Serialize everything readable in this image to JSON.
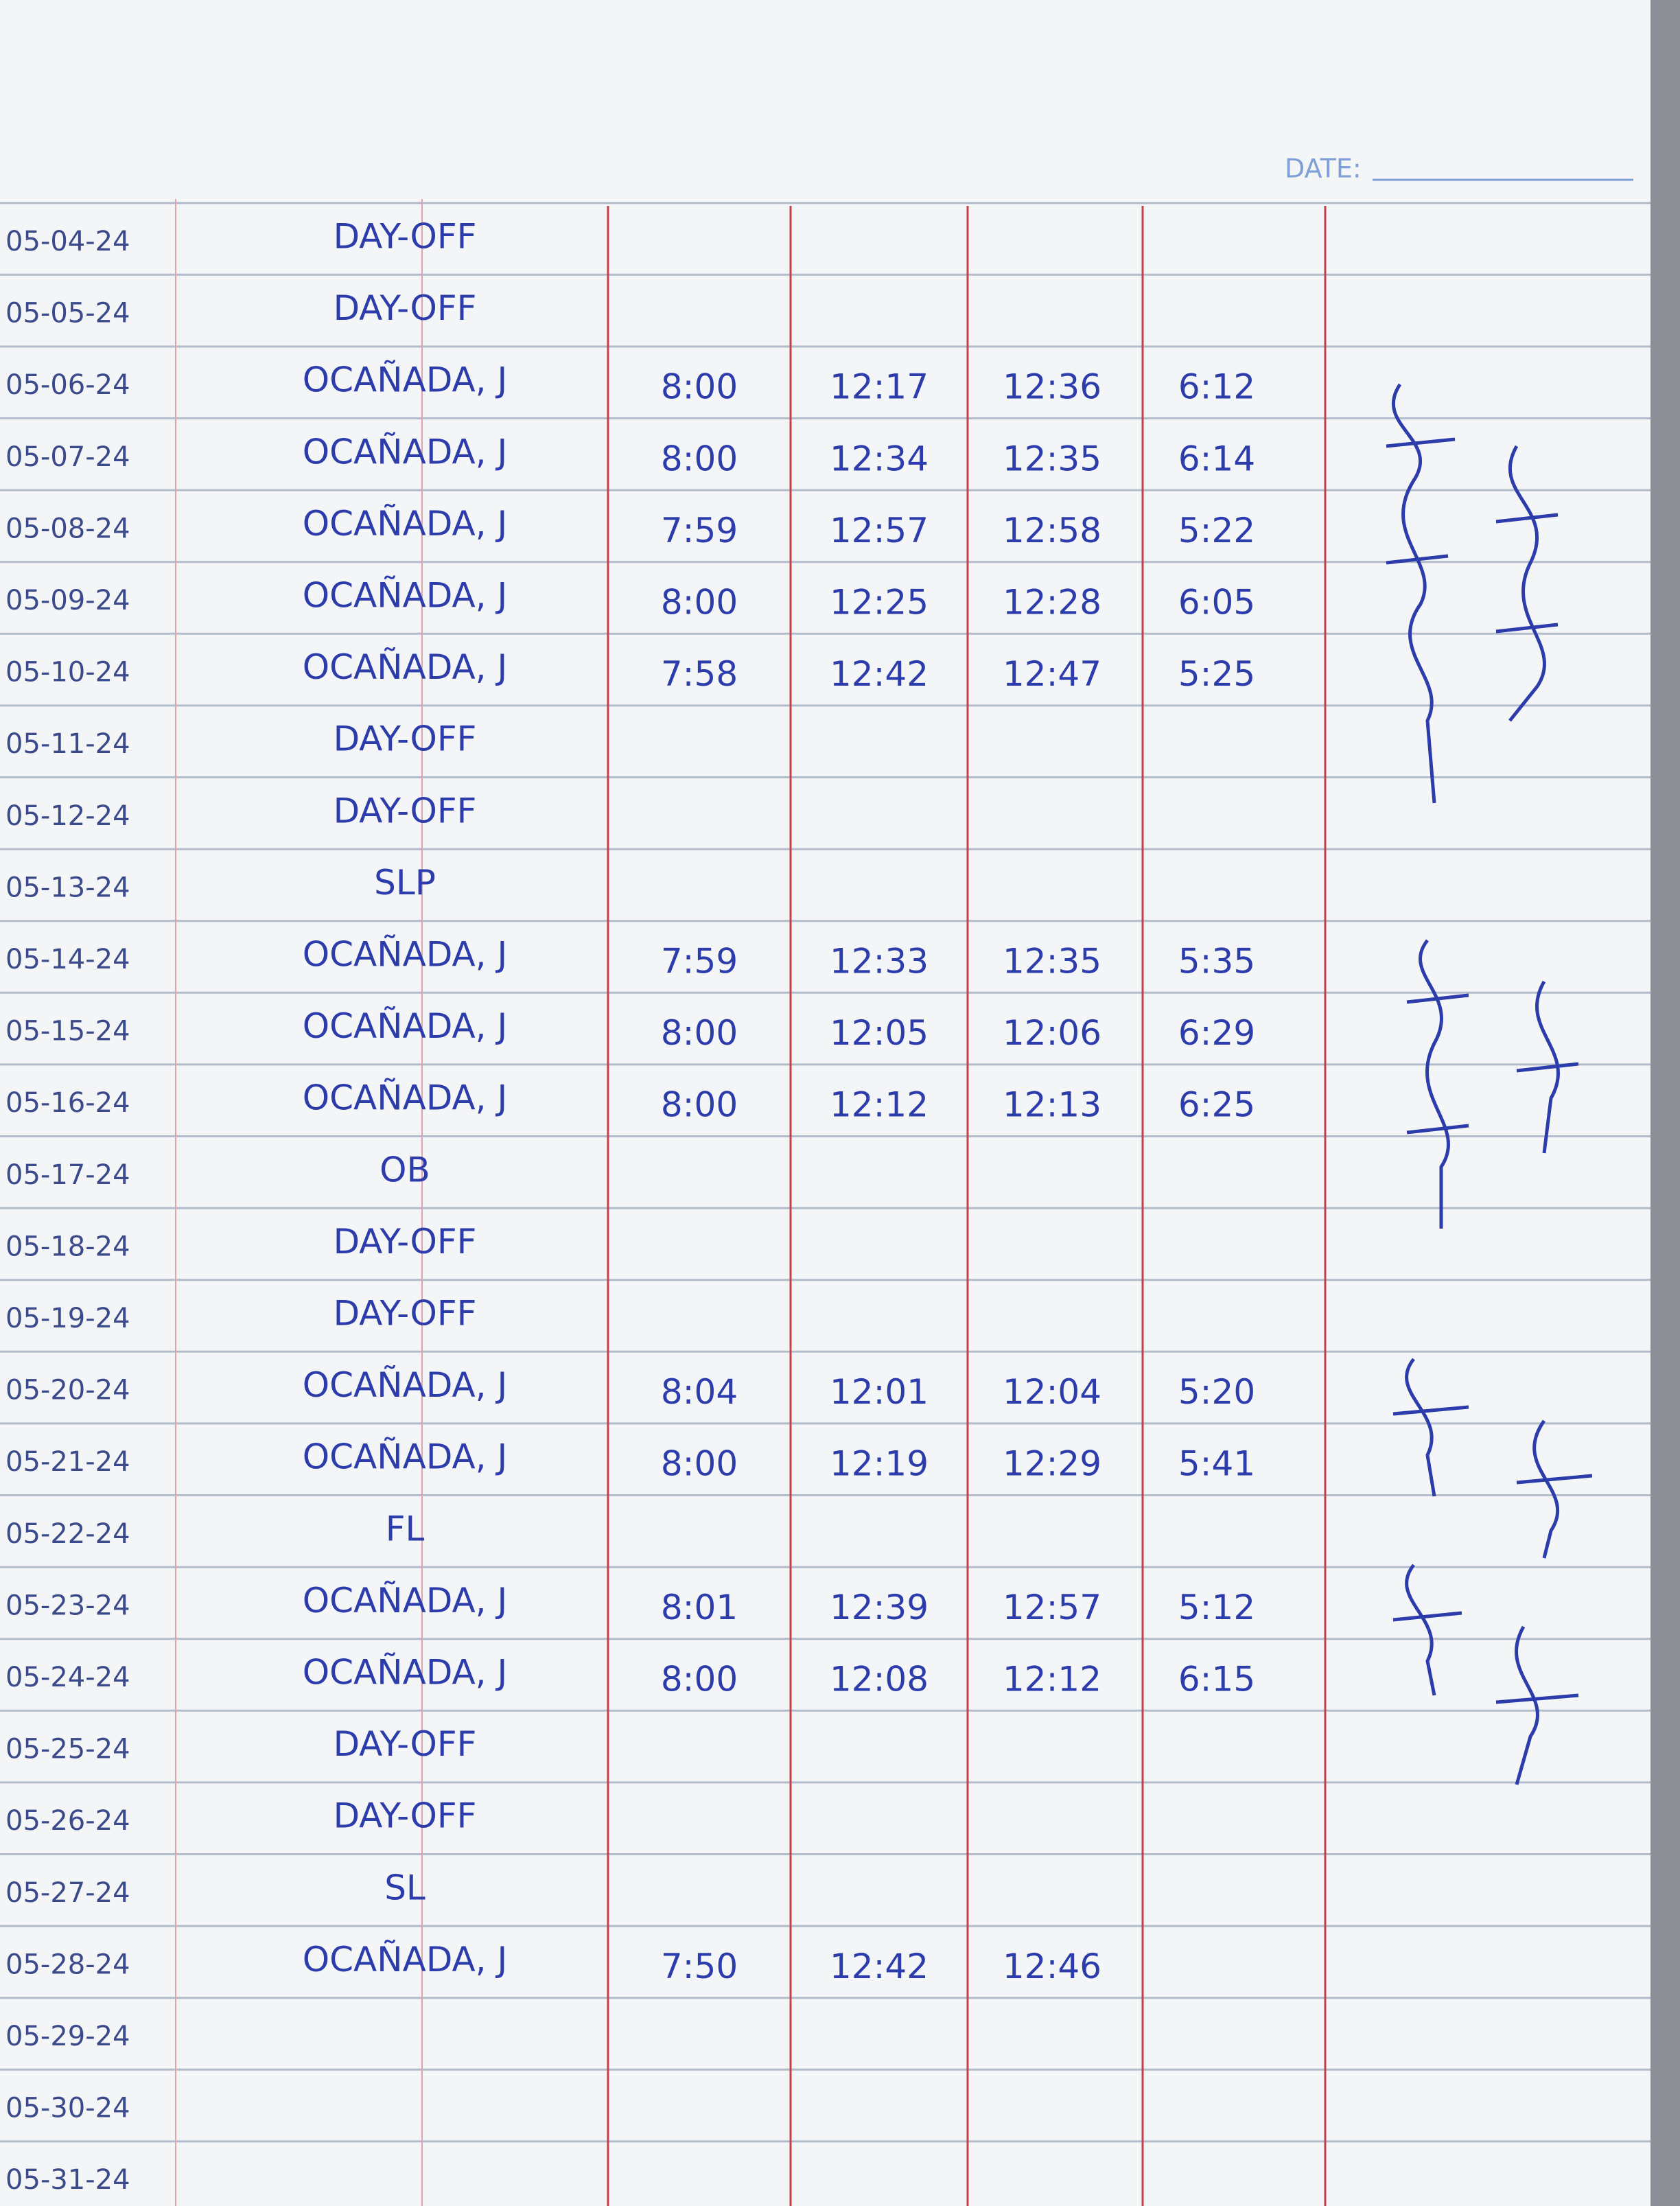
{
  "header": {
    "date_label": "DATE:"
  },
  "table": {
    "rows": [
      {
        "date": "05-04-24",
        "entry": "DAY-OFF"
      },
      {
        "date": "05-05-24",
        "entry": "DAY-OFF"
      },
      {
        "date": "05-06-24",
        "entry": "OCAÑADA, J",
        "times": [
          "8:00",
          "12:17",
          "12:36",
          "6:12"
        ]
      },
      {
        "date": "05-07-24",
        "entry": "OCAÑADA, J",
        "times": [
          "8:00",
          "12:34",
          "12:35",
          "6:14"
        ]
      },
      {
        "date": "05-08-24",
        "entry": "OCAÑADA, J",
        "times": [
          "7:59",
          "12:57",
          "12:58",
          "5:22"
        ]
      },
      {
        "date": "05-09-24",
        "entry": "OCAÑADA, J",
        "times": [
          "8:00",
          "12:25",
          "12:28",
          "6:05"
        ]
      },
      {
        "date": "05-10-24",
        "entry": "OCAÑADA, J",
        "times": [
          "7:58",
          "12:42",
          "12:47",
          "5:25"
        ]
      },
      {
        "date": "05-11-24",
        "entry": "DAY-OFF"
      },
      {
        "date": "05-12-24",
        "entry": "DAY-OFF"
      },
      {
        "date": "05-13-24",
        "entry": "SLP"
      },
      {
        "date": "05-14-24",
        "entry": "OCAÑADA, J",
        "times": [
          "7:59",
          "12:33",
          "12:35",
          "5:35"
        ]
      },
      {
        "date": "05-15-24",
        "entry": "OCAÑADA, J",
        "times": [
          "8:00",
          "12:05",
          "12:06",
          "6:29"
        ]
      },
      {
        "date": "05-16-24",
        "entry": "OCAÑADA, J",
        "times": [
          "8:00",
          "12:12",
          "12:13",
          "6:25"
        ]
      },
      {
        "date": "05-17-24",
        "entry": "OB"
      },
      {
        "date": "05-18-24",
        "entry": "DAY-OFF"
      },
      {
        "date": "05-19-24",
        "entry": "DAY-OFF"
      },
      {
        "date": "05-20-24",
        "entry": "OCAÑADA, J",
        "times": [
          "8:04",
          "12:01",
          "12:04",
          "5:20"
        ]
      },
      {
        "date": "05-21-24",
        "entry": "OCAÑADA, J",
        "times": [
          "8:00",
          "12:19",
          "12:29",
          "5:41"
        ]
      },
      {
        "date": "05-22-24",
        "entry": "FL"
      },
      {
        "date": "05-23-24",
        "entry": "OCAÑADA, J",
        "times": [
          "8:01",
          "12:39",
          "12:57",
          "5:12"
        ]
      },
      {
        "date": "05-24-24",
        "entry": "OCAÑADA, J",
        "times": [
          "8:00",
          "12:08",
          "12:12",
          "6:15"
        ]
      },
      {
        "date": "05-25-24",
        "entry": "DAY-OFF"
      },
      {
        "date": "05-26-24",
        "entry": "DAY-OFF"
      },
      {
        "date": "05-27-24",
        "entry": "SL"
      },
      {
        "date": "05-28-24",
        "entry": "OCAÑADA, J",
        "times": [
          "7:50",
          "12:42",
          "12:46"
        ]
      },
      {
        "date": "05-29-24"
      },
      {
        "date": "05-30-24"
      },
      {
        "date": "05-31-24"
      }
    ]
  }
}
